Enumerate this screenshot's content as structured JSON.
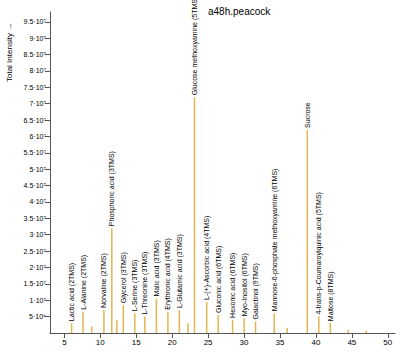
{
  "chart_data": {
    "type": "bar",
    "title": "a48h.peacock",
    "ylabel": "Total Intensity →",
    "x": [
      6.0,
      7.6,
      8.8,
      10.5,
      11.6,
      12.3,
      13.2,
      14.8,
      16.2,
      17.8,
      19.4,
      21.0,
      22.2,
      23.1,
      24.8,
      26.4,
      28.4,
      30.0,
      31.6,
      34.2,
      36.0,
      38.8,
      40.4,
      42.0,
      44.5,
      47.0
    ],
    "values": [
      3000000,
      6500000,
      2000000,
      7000000,
      32000000,
      4000000,
      8500000,
      6000000,
      5000000,
      10500000,
      6500000,
      7000000,
      3000000,
      72000000,
      9500000,
      5500000,
      4000000,
      4500000,
      3500000,
      6000000,
      1500000,
      62000000,
      5000000,
      3000000,
      1000000,
      800000
    ],
    "labels": [
      "Lactic acid (2TMS)",
      "L-Alanine (2TMS)",
      null,
      "Norvaline (2TMS)",
      "Phosphoric acid (3TMS)",
      null,
      "Glycerol (3TMS)",
      "L-Serine (3TMS)",
      "L-Threonine (3TMS)",
      "Malic acid (3TMS)",
      "Erythronic acid (4TMS)",
      "L-Glutamic acid (3TMS)",
      null,
      "Glucose methoxyamine (5TMS)",
      "L-(+)-Ascorbic acid (4TMS)",
      "Gluconic acid (6TMS)",
      "Hexonic acid (6TMS)",
      "Myo-Inositol (6TMS)",
      "Galactinol (9TMS)",
      "Mannose-6-phosphate methoxyamine (6TMS)",
      null,
      "Sucrose",
      "4-trans-p-Coumaroylquinic acid (5TMS)",
      "Maltose (8TMS)",
      null,
      null
    ],
    "color": "#e3b552",
    "xlim": [
      3,
      51
    ],
    "xticks": [
      5,
      10,
      15,
      20,
      25,
      30,
      35,
      40,
      45,
      50
    ],
    "ylim": [
      0,
      98000000
    ],
    "yticks": [
      {
        "value": 5000000,
        "label": "5·10⁶"
      },
      {
        "value": 10000000,
        "label": "1·10⁷"
      },
      {
        "value": 15000000,
        "label": "1.5·10⁷"
      },
      {
        "value": 20000000,
        "label": "2·10⁷"
      },
      {
        "value": 25000000,
        "label": "2.5·10⁷"
      },
      {
        "value": 30000000,
        "label": "3·10⁷"
      },
      {
        "value": 35000000,
        "label": "3.5·10⁷"
      },
      {
        "value": 40000000,
        "label": "4·10⁷"
      },
      {
        "value": 45000000,
        "label": "4.5·10⁷"
      },
      {
        "value": 50000000,
        "label": "5·10⁷"
      },
      {
        "value": 55000000,
        "label": "5.5·10⁷"
      },
      {
        "value": 60000000,
        "label": "6·10⁷"
      },
      {
        "value": 65000000,
        "label": "6.5·10⁷"
      },
      {
        "value": 70000000,
        "label": "7·10⁷"
      },
      {
        "value": 75000000,
        "label": "7.5·10⁷"
      },
      {
        "value": 80000000,
        "label": "8·10⁷"
      },
      {
        "value": 85000000,
        "label": "8.5·10⁷"
      },
      {
        "value": 90000000,
        "label": "9·10⁷"
      },
      {
        "value": 95000000,
        "label": "9.5·10⁷"
      }
    ],
    "grid": false
  }
}
